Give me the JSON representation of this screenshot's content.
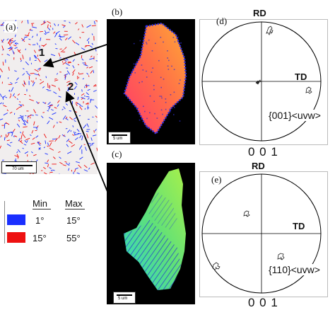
{
  "panels": {
    "a": {
      "letter": "(a)",
      "scale_bar": "70 um",
      "markers": [
        "1",
        "2"
      ]
    },
    "b": {
      "letter": "(b)",
      "scale_bar": "5 um"
    },
    "c": {
      "letter": "(c)",
      "scale_bar": "5 um"
    },
    "d": {
      "letter": "(d)",
      "axis_top": "RD",
      "axis_right": "TD",
      "texture": "{001}<uvw>",
      "bottom": "0 0 1"
    },
    "e": {
      "letter": "(e)",
      "axis_top": "RD",
      "axis_right": "TD",
      "texture": "{110}<uvw>",
      "bottom": "0 0 1"
    }
  },
  "legend": {
    "header_min": "Min",
    "header_max": "Max",
    "rows": [
      {
        "min": "1°",
        "max": "15°",
        "color": "#1a2fff"
      },
      {
        "min": "15°",
        "max": "55°",
        "color": "#ee1111"
      }
    ]
  }
}
